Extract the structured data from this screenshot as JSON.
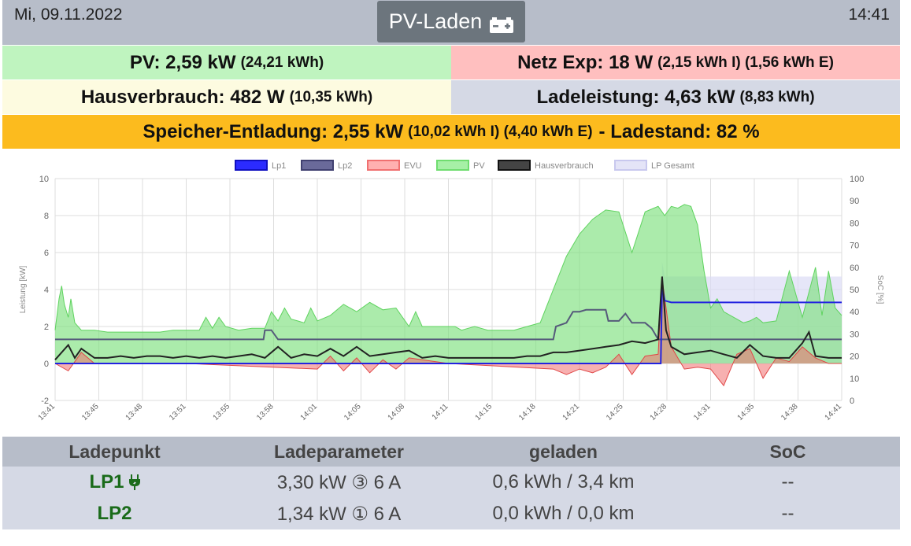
{
  "header": {
    "date": "Mi, 09.11.2022",
    "time": "14:41",
    "mode_button": "PV-Laden",
    "mode_icon": "battery-icon"
  },
  "summary": {
    "pv": {
      "label": "PV: 2,59 kW",
      "sub": "(24,21 kWh)"
    },
    "netz": {
      "label": "Netz Exp: 18 W",
      "sub": "(2,15 kWh I) (1,56 kWh E)"
    },
    "haus": {
      "label": "Hausverbrauch: 482 W",
      "sub": "(10,35 kWh)"
    },
    "lade": {
      "label": "Ladeleistung: 4,63 kW",
      "sub": "(8,83 kWh)"
    },
    "speicher": {
      "label": "Speicher-Entladung: 2,55 kW",
      "sub": "(10,02 kWh I) (4,40 kWh E)",
      "tail": "- Ladestand: 82 %"
    }
  },
  "chart_data": {
    "type": "line",
    "legend": [
      "Lp1",
      "Lp2",
      "EVU",
      "PV",
      "Hausverbrauch",
      "LP Gesamt"
    ],
    "legend_placement": "top",
    "ylabel": "Leistung [kW]",
    "y2label": "SoC [%]",
    "ylim": [
      -2,
      10
    ],
    "y2lim": [
      0,
      100
    ],
    "yticks": [
      "10",
      "8",
      "6",
      "4",
      "2",
      "0",
      "-2"
    ],
    "y2ticks": [
      "100",
      "90",
      "80",
      "70",
      "60",
      "50",
      "40",
      "30",
      "20",
      "10",
      "0"
    ],
    "xticks": [
      "13:41",
      "13:45",
      "13:48",
      "13:51",
      "13:55",
      "13:58",
      "14:01",
      "14:05",
      "14:08",
      "14:11",
      "14:15",
      "14:18",
      "14:21",
      "14:25",
      "14:28",
      "14:31",
      "14:35",
      "14:38",
      "14:41"
    ],
    "grid": true,
    "colors": {
      "Lp1": "#2323e0",
      "Lp2": "#555a7a",
      "EVU": "#f07070",
      "PV": "#7ee07e",
      "Hausverbrauch": "#222222",
      "LP Gesamt": "#dcdcf5"
    },
    "series": [
      {
        "name": "PV",
        "x": [
          0,
          0.3,
          0.5,
          0.7,
          1,
          1.2,
          1.5,
          2,
          3,
          4,
          5,
          6,
          7,
          8,
          9,
          10,
          11,
          11.5,
          12,
          12.5,
          13,
          13.5,
          14,
          15,
          16,
          16.5,
          17,
          17.5,
          18,
          18.5,
          19,
          19.5,
          20,
          21,
          22,
          23,
          24,
          25,
          26,
          27,
          27.5,
          28,
          28.5,
          29,
          29.5,
          30,
          30.5,
          31,
          31.5,
          32,
          32.5,
          33,
          34,
          35,
          36,
          37,
          38,
          39,
          40,
          41,
          42,
          43,
          44,
          45,
          46,
          46.5,
          47,
          47.5,
          48,
          48.5,
          49,
          49.5,
          50,
          50.5,
          51,
          51.5,
          52,
          52.5,
          53,
          53.5,
          54,
          55,
          56,
          57,
          58,
          58.5,
          59,
          59.5,
          60
        ],
        "y": [
          1.8,
          3.5,
          4.2,
          3.2,
          2.5,
          3.5,
          2.2,
          1.8,
          1.8,
          1.7,
          1.7,
          1.7,
          1.7,
          1.7,
          1.8,
          1.8,
          1.8,
          2.5,
          1.9,
          2.5,
          2.0,
          1.9,
          1.8,
          1.9,
          1.9,
          2.8,
          2.3,
          3.0,
          2.4,
          2.3,
          2.2,
          3.0,
          2.3,
          2.6,
          3.2,
          2.8,
          3.3,
          2.9,
          3.0,
          2.0,
          2.8,
          2.0,
          2.0,
          2.0,
          2.0,
          2.0,
          2.0,
          1.8,
          1.9,
          2.0,
          1.9,
          1.8,
          1.8,
          1.8,
          2.0,
          2.2,
          4.0,
          5.8,
          7.0,
          7.8,
          8.3,
          8.2,
          6.0,
          8.2,
          8.5,
          8.0,
          8.5,
          8.4,
          8.6,
          8.5,
          7.5,
          5.0,
          3.0,
          3.5,
          2.8,
          2.6,
          2.4,
          2.2,
          2.3,
          2.5,
          2.2,
          2.3,
          5.0,
          2.5,
          5.2,
          2.6,
          5.0,
          3.0,
          2.6
        ]
      },
      {
        "name": "Hausverbrauch",
        "x": [
          0,
          1,
          1.5,
          2,
          3,
          4,
          5,
          6,
          7,
          8,
          9,
          10,
          11,
          12,
          13,
          14,
          15,
          16,
          17,
          18,
          19,
          20,
          21,
          22,
          23,
          24,
          25,
          26,
          27,
          28,
          29,
          30,
          31,
          32,
          33,
          34,
          35,
          36,
          37,
          38,
          39,
          40,
          41,
          42,
          43,
          44,
          45,
          46,
          46.3,
          46.6,
          47,
          48,
          49,
          50,
          51,
          52,
          53,
          54,
          55,
          56,
          57,
          57.5,
          58,
          59,
          60
        ],
        "y": [
          0.2,
          1.0,
          0.3,
          0.8,
          0.3,
          0.3,
          0.4,
          0.3,
          0.4,
          0.4,
          0.3,
          0.4,
          0.3,
          0.4,
          0.3,
          0.4,
          0.5,
          0.3,
          0.9,
          0.3,
          0.5,
          0.4,
          0.8,
          0.4,
          0.9,
          0.4,
          0.5,
          0.6,
          0.7,
          0.3,
          0.4,
          0.3,
          0.3,
          0.3,
          0.3,
          0.3,
          0.3,
          0.4,
          0.4,
          0.6,
          0.6,
          0.7,
          0.8,
          0.9,
          1.0,
          1.2,
          1.1,
          1.3,
          4.7,
          1.8,
          0.9,
          0.5,
          0.6,
          0.7,
          0.5,
          0.3,
          1.0,
          0.4,
          0.3,
          0.3,
          1.1,
          1.7,
          0.4,
          0.3,
          0.3
        ]
      },
      {
        "name": "EVU",
        "x": [
          0,
          1,
          2,
          3,
          10,
          20,
          21,
          22,
          23,
          24,
          25,
          26,
          27,
          30,
          38,
          39,
          40,
          41,
          42,
          43,
          44,
          45,
          46,
          46.3,
          47,
          48,
          49,
          50,
          51,
          52,
          53,
          54,
          55,
          56,
          57,
          58,
          59,
          60
        ],
        "y": [
          0,
          -0.4,
          0.6,
          0,
          0,
          -0.3,
          0.4,
          -0.4,
          0.3,
          -0.5,
          0.2,
          -0.3,
          0.3,
          0,
          -0.3,
          -0.6,
          -0.3,
          -0.5,
          -0.2,
          0.5,
          -0.6,
          0.4,
          0.5,
          4.6,
          0.9,
          -0.3,
          -0.2,
          -0.3,
          -1.2,
          0.5,
          0.8,
          -0.8,
          0.3,
          0.1,
          0.9,
          0.3,
          0.0,
          0.0
        ]
      },
      {
        "name": "Lp2",
        "x": [
          0,
          15.9,
          16,
          16.5,
          17,
          38,
          38.2,
          39,
          39.5,
          40,
          40.5,
          42,
          42.2,
          43,
          43.5,
          44,
          44.5,
          45,
          45.5,
          46,
          46.3,
          46.6,
          60
        ],
        "y": [
          1.3,
          1.3,
          1.8,
          1.8,
          1.3,
          1.3,
          2.0,
          2.2,
          2.8,
          2.8,
          2.9,
          2.9,
          2.3,
          2.3,
          2.7,
          2.2,
          2.2,
          2.2,
          1.9,
          1.3,
          1.3,
          1.3,
          1.3
        ]
      },
      {
        "name": "Lp1",
        "x": [
          0,
          46.2,
          46.3,
          46.5,
          47,
          60
        ],
        "y": [
          0,
          0,
          4.2,
          3.4,
          3.3,
          3.3
        ]
      },
      {
        "name": "LP Gesamt",
        "x": [
          46.3,
          46.5,
          60
        ],
        "y": [
          5.5,
          4.7,
          4.7
        ]
      }
    ]
  },
  "table": {
    "headers": [
      "Ladepunkt",
      "Ladeparameter",
      "geladen",
      "SoC"
    ],
    "rows": [
      {
        "name": "LP1",
        "icon": "plug-icon",
        "param": "3,30 kW ③ 6 A",
        "charged": "0,6 kWh / 3,4 km",
        "soc": "--"
      },
      {
        "name": "LP2",
        "icon": "",
        "param": "1,34 kW ① 6 A",
        "charged": "0,0 kWh / 0,0 km",
        "soc": "--"
      }
    ]
  }
}
